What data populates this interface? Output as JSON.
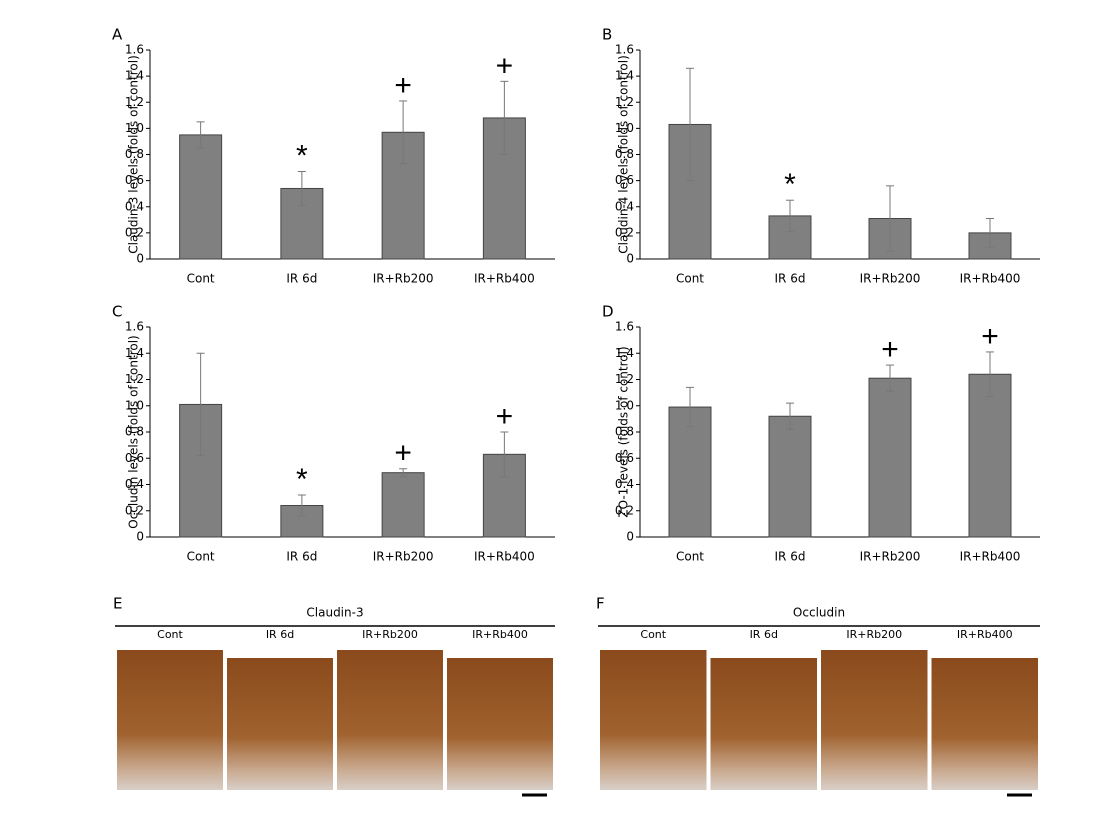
{
  "chart_data": [
    {
      "type": "bar",
      "panel": "A",
      "ylabel": "Claudin-3 levels (folds of control)",
      "categories": [
        "Cont",
        "IR 6d",
        "IR+Rb200",
        "IR+Rb400"
      ],
      "values": [
        0.95,
        0.54,
        0.97,
        1.08
      ],
      "errors": [
        0.1,
        0.13,
        0.24,
        0.28
      ],
      "annotations": [
        null,
        "*",
        "+",
        "+"
      ],
      "color": "#808080",
      "ylim": [
        0,
        1.6
      ],
      "yticks": [
        0,
        0.2,
        0.4,
        0.6,
        0.8,
        {
          "value": 1,
          "label": "1.0"
        },
        1.2,
        1.4,
        1.6
      ]
    },
    {
      "type": "bar",
      "panel": "B",
      "ylabel": "Claudin-4 levels (folds of control)",
      "categories": [
        "Cont",
        "IR 6d",
        "IR+Rb200",
        "IR+Rb400"
      ],
      "values": [
        1.03,
        0.33,
        0.31,
        0.2
      ],
      "errors": [
        0.43,
        0.12,
        0.25,
        0.11
      ],
      "annotations": [
        null,
        "*",
        null,
        null
      ],
      "color": "#808080",
      "ylim": [
        0,
        1.6
      ],
      "yticks": [
        0,
        0.2,
        0.4,
        0.6,
        0.8,
        {
          "value": 1,
          "label": "1.0"
        },
        1.2,
        1.4,
        1.6
      ]
    },
    {
      "type": "bar",
      "panel": "C",
      "ylabel": "Occludin levels (folds of control)",
      "categories": [
        "Cont",
        "IR 6d",
        "IR+Rb200",
        "IR+Rb400"
      ],
      "values": [
        1.01,
        0.24,
        0.49,
        0.63
      ],
      "errors": [
        0.39,
        0.08,
        0.03,
        0.17
      ],
      "annotations": [
        null,
        "*",
        "+",
        "+"
      ],
      "color": "#808080",
      "ylim": [
        0,
        1.6
      ],
      "yticks": [
        0,
        0.2,
        0.4,
        0.6,
        0.8,
        {
          "value": 1,
          "label": "1.0"
        },
        1.2,
        1.4,
        1.6
      ]
    },
    {
      "type": "bar",
      "panel": "D",
      "ylabel": "ZO-1 levels (folds of control)",
      "categories": [
        "Cont",
        "IR 6d",
        "IR+Rb200",
        "IR+Rb400"
      ],
      "values": [
        0.99,
        0.92,
        1.21,
        1.24
      ],
      "errors": [
        0.15,
        0.1,
        0.1,
        0.17
      ],
      "annotations": [
        null,
        null,
        "+",
        "+"
      ],
      "color": "#808080",
      "ylim": [
        0,
        1.6
      ],
      "yticks": [
        0,
        0.2,
        0.4,
        0.6,
        0.8,
        {
          "value": 1,
          "label": "1.0"
        },
        1.2,
        1.4,
        1.6
      ]
    }
  ],
  "image_panels": [
    {
      "panel": "E",
      "title": "Claudin-3",
      "labels": [
        "Cont",
        "IR 6d",
        "IR+Rb200",
        "IR+Rb400"
      ]
    },
    {
      "panel": "F",
      "title": "Occludin",
      "labels": [
        "Cont",
        "IR 6d",
        "IR+Rb200",
        "IR+Rb400"
      ]
    }
  ]
}
